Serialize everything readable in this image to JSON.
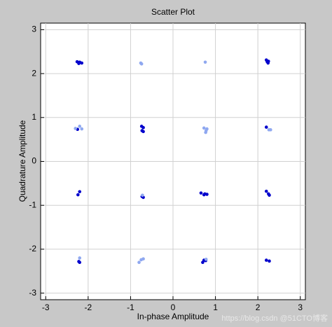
{
  "chart_data": {
    "type": "scatter",
    "title": "Scatter Plot",
    "x_label": "In-phase Amplitude",
    "y_label": "Quadrature Amplitude",
    "xlim": [
      -3.12,
      3.12
    ],
    "ylim": [
      -3.15,
      3.15
    ],
    "xticks": [
      -3,
      -2,
      -1,
      0,
      1,
      2,
      3
    ],
    "yticks": [
      -3,
      -2,
      -1,
      0,
      1,
      2,
      3
    ],
    "grid": true,
    "series": [
      {
        "color": "#0000cc",
        "x": [
          -2.26,
          -2.2,
          -2.15,
          -2.22,
          2.2,
          2.25,
          2.24,
          2.22,
          -2.25,
          -0.74,
          -0.7,
          -0.73,
          -0.7,
          2.2,
          -2.2,
          -2.24,
          -0.73,
          -0.7,
          0.66,
          0.75,
          0.8,
          0.73,
          2.2,
          2.25,
          2.27,
          -2.22,
          -2.2,
          0.7,
          0.73,
          0.77,
          2.2,
          2.27
        ],
        "y": [
          2.27,
          2.26,
          2.24,
          2.23,
          2.31,
          2.28,
          2.24,
          2.27,
          0.73,
          0.8,
          0.77,
          0.7,
          0.68,
          0.78,
          -0.69,
          -0.76,
          -0.8,
          -0.82,
          -0.72,
          -0.74,
          -0.75,
          -0.76,
          -0.68,
          -0.74,
          -0.77,
          -2.28,
          -2.3,
          -2.3,
          -2.25,
          -2.26,
          -2.25,
          -2.27
        ]
      },
      {
        "color": "#8fa8f0",
        "x": [
          -0.76,
          -0.74,
          0.76,
          -2.3,
          -2.2,
          -2.15,
          0.73,
          0.78,
          0.8,
          0.77,
          2.26,
          2.3,
          -0.72,
          -2.2,
          -0.8,
          -0.7,
          -0.75,
          0.78
        ],
        "y": [
          2.24,
          2.22,
          2.26,
          0.75,
          0.8,
          0.74,
          0.76,
          0.7,
          0.74,
          0.66,
          0.72,
          0.72,
          -0.77,
          -2.2,
          -2.3,
          -2.22,
          -2.24,
          -2.23
        ]
      }
    ],
    "watermark": "https://blog.csdn @51CTO博客"
  }
}
